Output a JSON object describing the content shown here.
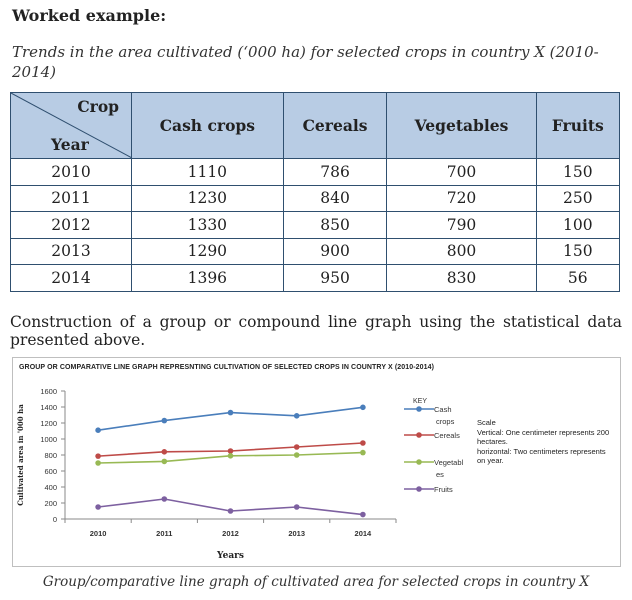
{
  "heading": "Worked example:",
  "caption": "Trends in the area cultivated (‘000 ha) for selected crops in country X (2010-2014)",
  "table": {
    "corner_top": "Crop",
    "corner_bottom": "Year",
    "columns": [
      "Cash crops",
      "Cereals",
      "Vegetables",
      "Fruits"
    ],
    "rows": [
      [
        "2010",
        "1110",
        "786",
        "700",
        "150"
      ],
      [
        "2011",
        "1230",
        "840",
        "720",
        "250"
      ],
      [
        "2012",
        "1330",
        "850",
        "790",
        "100"
      ],
      [
        "2013",
        "1290",
        "900",
        "800",
        "150"
      ],
      [
        "2014",
        "1396",
        "950",
        "830",
        "56"
      ]
    ]
  },
  "construction_text": "Construction of a group or compound line graph using the statistical data presented above.",
  "figure_caption": "Group/comparative line graph of cultivated area for selected crops in country X",
  "scale": {
    "title": "Scale",
    "vertical": "Vertical: One centimeter represents 200 hectares.",
    "horizontal": "horizontal: Two centimeters represents on year."
  },
  "colors": {
    "cash": "#4a7ebb",
    "cereals": "#be4b48",
    "vegetables": "#98b954",
    "fruits": "#7d60a0",
    "table_header": "#b8cce4"
  },
  "chart_data": {
    "type": "line",
    "title": "GROUP OR COMPARATIVE LINE GRAPH REPRESNTING CULTIVATION OF  SELECTED  CROPS IN COUNTRY X (2010-2014)",
    "xlabel": "Years",
    "ylabel": "Cultivated area in '000 ha",
    "categories": [
      "2010",
      "2011",
      "2012",
      "2013",
      "2014"
    ],
    "ylim": [
      0,
      1600
    ],
    "yticks": [
      0,
      200,
      400,
      600,
      800,
      1000,
      1200,
      1400,
      1600
    ],
    "grid": false,
    "legend_title": "KEY",
    "legend_position": "right",
    "series": [
      {
        "name": "Cash crops",
        "values": [
          1110,
          1230,
          1330,
          1290,
          1396
        ]
      },
      {
        "name": "Cereals",
        "values": [
          786,
          840,
          850,
          900,
          950
        ]
      },
      {
        "name": "Vegetables",
        "values": [
          700,
          720,
          790,
          800,
          830
        ]
      },
      {
        "name": "Fruits",
        "values": [
          150,
          250,
          100,
          150,
          56
        ]
      }
    ]
  }
}
